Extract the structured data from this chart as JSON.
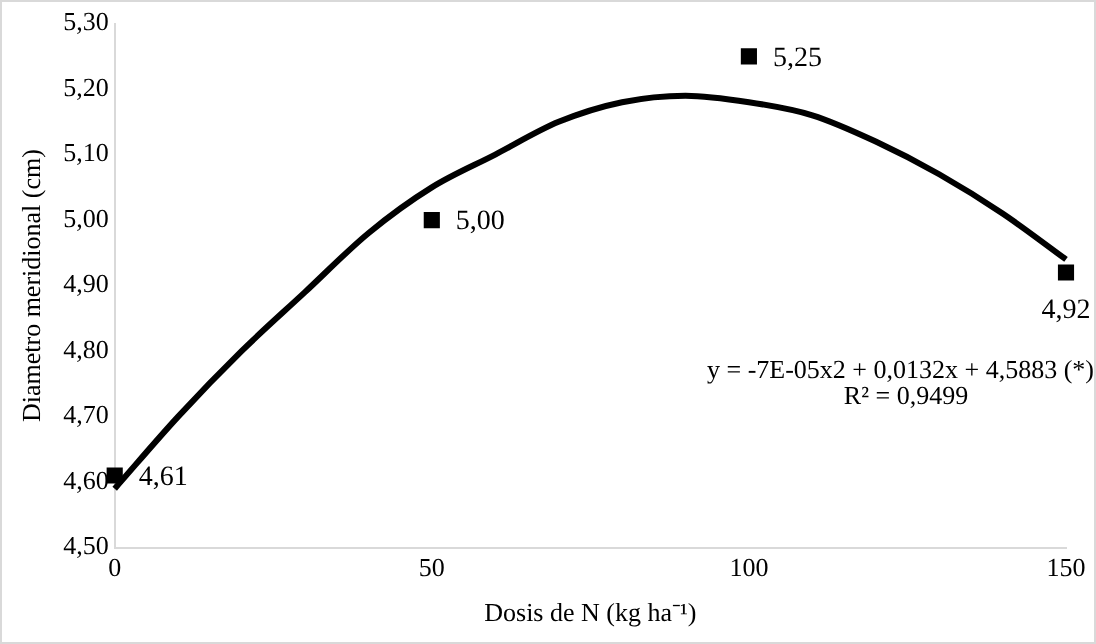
{
  "chart_data": {
    "type": "scatter",
    "xlabel": "Dosis de N (kg ha⁻¹)",
    "ylabel": "Diametro meridional (cm)",
    "x": [
      0,
      50,
      100,
      150
    ],
    "series": [
      {
        "color": "#000000",
        "marker": "square",
        "values": [
          4.61,
          5.0,
          5.25,
          4.92
        ],
        "value_labels": [
          "4,61",
          "5,00",
          "5,25",
          "4,92"
        ]
      },
      {
        "type": "line",
        "color": "#000000",
        "marker": "none",
        "x": [
          0,
          10,
          20,
          30,
          40,
          50,
          60,
          70,
          80,
          90,
          100,
          110,
          120,
          130,
          140,
          150
        ],
        "values": [
          4.59,
          4.7,
          4.8,
          4.89,
          4.98,
          5.05,
          5.1,
          5.15,
          5.18,
          5.19,
          5.18,
          5.16,
          5.12,
          5.07,
          5.01,
          4.94
        ]
      }
    ],
    "annotations": [
      "y = -7E-05x2 + 0,0132x + 4,5883 (*)",
      "R² = 0,9499"
    ],
    "xlim": [
      0,
      150
    ],
    "xticks": [
      0,
      50,
      100,
      150
    ],
    "ylim": [
      4.5,
      5.3
    ],
    "yticks": [
      {
        "value": 4.5,
        "label": "4,50"
      },
      {
        "value": 4.6,
        "label": "4,60"
      },
      {
        "value": 4.7,
        "label": "4,70"
      },
      {
        "value": 4.8,
        "label": "4,80"
      },
      {
        "value": 4.9,
        "label": "4,90"
      },
      {
        "value": 5.0,
        "label": "5,00"
      },
      {
        "value": 5.1,
        "label": "5,10"
      },
      {
        "value": 5.2,
        "label": "5,20"
      },
      {
        "value": 5.3,
        "label": "5,30"
      }
    ],
    "grid": false,
    "legend": false
  }
}
